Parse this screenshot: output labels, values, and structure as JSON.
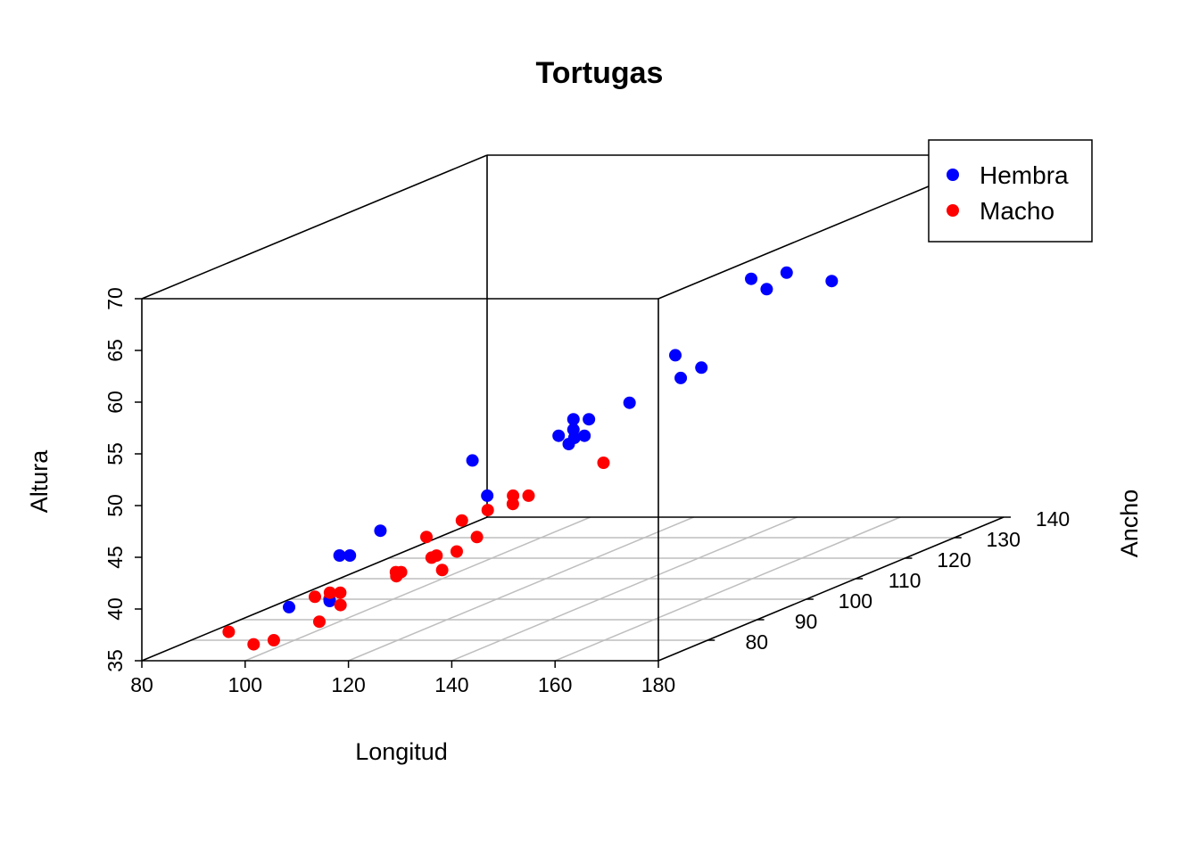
{
  "chart_data": {
    "type": "scatter3d",
    "title": "Tortugas",
    "xlabel": "Longitud",
    "ylabel": "Ancho",
    "zlabel": "Altura",
    "xlim": [
      80,
      180
    ],
    "ylim": [
      70,
      140
    ],
    "zlim": [
      35,
      70
    ],
    "x_ticks": [
      "80",
      "100",
      "120",
      "140",
      "160",
      "180"
    ],
    "y_ticks": [
      "80",
      "90",
      "100",
      "110",
      "120",
      "130",
      "140"
    ],
    "z_ticks": [
      "35",
      "40",
      "45",
      "50",
      "55",
      "60",
      "65",
      "70"
    ],
    "grid": true,
    "legend_position": "top-right",
    "series": [
      {
        "name": "Hembra",
        "color": "#0000ff",
        "points": [
          [
            98,
            81,
            38
          ],
          [
            103,
            84,
            38
          ],
          [
            103,
            86,
            42
          ],
          [
            105,
            86,
            42
          ],
          [
            109,
            88,
            44
          ],
          [
            123,
            92,
            50
          ],
          [
            123,
            95,
            46
          ],
          [
            133,
            99,
            51
          ],
          [
            133,
            102,
            51
          ],
          [
            133,
            102,
            52
          ],
          [
            134,
            100,
            50
          ],
          [
            136,
            102,
            52
          ],
          [
            137,
            98,
            51
          ],
          [
            138,
            99,
            51
          ],
          [
            141,
            105,
            53
          ],
          [
            147,
            108,
            57
          ],
          [
            149,
            107,
            55
          ],
          [
            153,
            107,
            56
          ],
          [
            155,
            115,
            63
          ],
          [
            158,
            115,
            62
          ],
          [
            159,
            118,
            63
          ],
          [
            162,
            124,
            61
          ],
          [
            177,
            132,
            67
          ]
        ]
      },
      {
        "name": "Macho",
        "color": "#ff0000",
        "points": [
          [
            93,
            74,
            37
          ],
          [
            94,
            78,
            35
          ],
          [
            96,
            80,
            35
          ],
          [
            101,
            84,
            36
          ],
          [
            102,
            85,
            38
          ],
          [
            103,
            81,
            39
          ],
          [
            104,
            83,
            39
          ],
          [
            106,
            83,
            39
          ],
          [
            107,
            82,
            38
          ],
          [
            112,
            88,
            40
          ],
          [
            113,
            88,
            40
          ],
          [
            114,
            86,
            40
          ],
          [
            116,
            90,
            43
          ],
          [
            117,
            90,
            41
          ],
          [
            117,
            91,
            41
          ],
          [
            119,
            93,
            41
          ],
          [
            120,
            89,
            40
          ],
          [
            120,
            93,
            44
          ],
          [
            121,
            95,
            42
          ],
          [
            125,
            93,
            45
          ],
          [
            127,
            96,
            45
          ],
          [
            128,
            95,
            46
          ],
          [
            131,
            95,
            46
          ],
          [
            135,
            106,
            47
          ]
        ]
      }
    ]
  }
}
